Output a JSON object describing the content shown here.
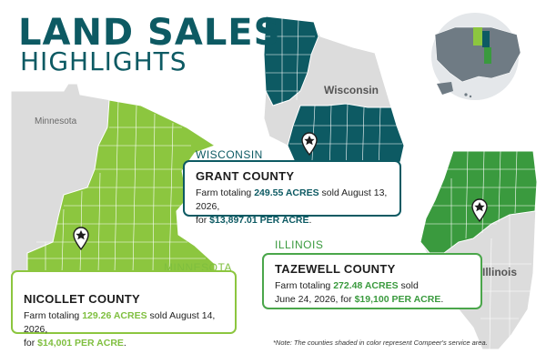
{
  "title": {
    "main": "LAND SALES",
    "sub": "HIGHLIGHTS"
  },
  "state_labels": {
    "minnesota": "Minnesota",
    "wisconsin": "Wisconsin",
    "illinois": "Illinois"
  },
  "colors": {
    "title": "#0d5a63",
    "wisconsin": "#0d5a63",
    "minnesota": "#8cc63f",
    "illinois": "#3a9a3e",
    "unshaded": "#dcdcdc"
  },
  "cards": {
    "wisconsin": {
      "state_tag": "WISCONSIN",
      "county": "GRANT COUNTY",
      "line1_prefix": "Farm totaling ",
      "acres": "249.55 ACRES",
      "line1_suffix": " sold August 13, 2026,",
      "line2_prefix": "for ",
      "price": "$13,897.01 PER ACRE",
      "line2_suffix": "."
    },
    "illinois": {
      "state_tag": "ILLINOIS",
      "county": "TAZEWELL COUNTY",
      "line1_prefix": "Farm totaling ",
      "acres": "272.48 ACRES",
      "line1_suffix": " sold",
      "line2_prefix": "June 24, 2026, for ",
      "price": "$19,100 PER ACRE",
      "line2_suffix": "."
    },
    "minnesota": {
      "state_tag": "MINNESOTA",
      "county": "NICOLLET COUNTY",
      "line1_prefix": "Farm totaling ",
      "acres": "129.26 ACRES",
      "line1_suffix": " sold August 14, 2026,",
      "line2_prefix": "for ",
      "price": "$14,001 PER ACRE",
      "line2_suffix": "."
    }
  },
  "note": "*Note: The counties shaded in color represent Compeer's service area.",
  "icons": {
    "pin": "location-pin-star-icon",
    "us_map": "us-map-globe-icon"
  }
}
